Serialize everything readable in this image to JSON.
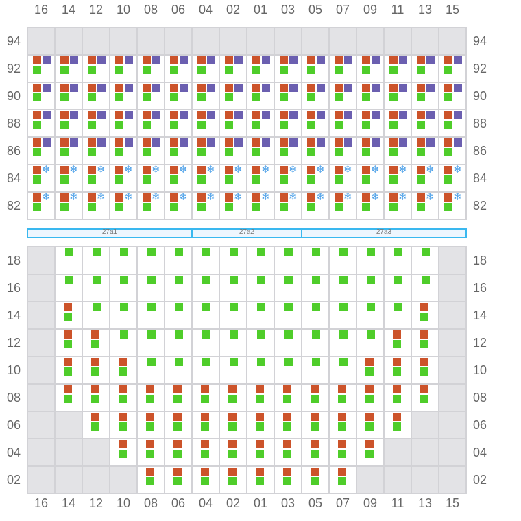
{
  "columns": [
    "16",
    "14",
    "12",
    "10",
    "08",
    "06",
    "04",
    "02",
    "01",
    "03",
    "05",
    "07",
    "09",
    "11",
    "13",
    "15"
  ],
  "colors": {
    "orange": "#cc532a",
    "purple": "#6b5fb0",
    "green": "#4fcd2a",
    "snowflake": "#4a9fe8",
    "empty": "#e3e3e6",
    "band": "#3ab8ef"
  },
  "top_section": {
    "rows": [
      {
        "label": "94",
        "cells": "EEEEEEEEEEEEEEEE"
      },
      {
        "label": "92",
        "cells": "PPPPPPPPPPPPPPPP"
      },
      {
        "label": "90",
        "cells": "PPPPPPPPPPPPPPPP"
      },
      {
        "label": "88",
        "cells": "PPPPPPPPPPPPPPPP"
      },
      {
        "label": "86",
        "cells": "PPPPPPPPPPPPPPPP"
      },
      {
        "label": "84",
        "cells": "SSSSSSSSSSSSSSSS"
      },
      {
        "label": "82",
        "cells": "SSSSSSSSSSSSSSSS"
      }
    ]
  },
  "legend_cells": {
    "E": "empty",
    "P": "orange+purple+green",
    "S": "orange+snowflake+green",
    "G": "green",
    "O": "orange+green"
  },
  "bands": [
    {
      "label": "27a1",
      "from": 0,
      "to": 5
    },
    {
      "label": "27a2",
      "from": 6,
      "to": 9
    },
    {
      "label": "27a3",
      "from": 10,
      "to": 15
    }
  ],
  "bottom_section": {
    "rows": [
      {
        "label": "18",
        "cells": "EGGGGGGGGGGGGGGE"
      },
      {
        "label": "16",
        "cells": "EGGGGGGGGGGGGGGE"
      },
      {
        "label": "14",
        "cells": "EOGGGGGGGGGGGGOE"
      },
      {
        "label": "12",
        "cells": "EOOGGGGGGGGGGOOE"
      },
      {
        "label": "10",
        "cells": "EOOOGGGGGGGGOOOE"
      },
      {
        "label": "08",
        "cells": "EOOOOOOOOOOOOOOE"
      },
      {
        "label": "06",
        "cells": "EEOOOOOOOOOOOOEE"
      },
      {
        "label": "04",
        "cells": "EEEOOOOOOOOOOEEE"
      },
      {
        "label": "02",
        "cells": "EEEEOOOOOOOOEEEE"
      }
    ]
  }
}
